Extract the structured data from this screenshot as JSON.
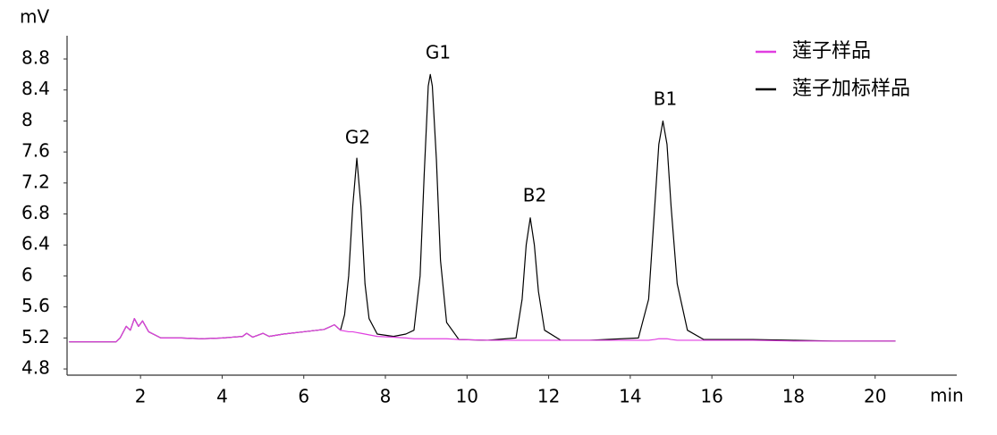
{
  "chart_data": {
    "type": "line",
    "y_label": "mV",
    "x_label": "min",
    "x": [
      0.25,
      1.4,
      1.5,
      1.65,
      1.75,
      1.85,
      1.95,
      2.05,
      2.2,
      2.5,
      3,
      3.5,
      4,
      4.5,
      4.6,
      4.75,
      5.0,
      5.15,
      5.5,
      6,
      6.5,
      6.75,
      6.9,
      7.0,
      7.1,
      7.2,
      7.3,
      7.4,
      7.5,
      7.6,
      7.8,
      8.2,
      8.5,
      8.7,
      8.85,
      8.95,
      9.05,
      9.1,
      9.15,
      9.25,
      9.35,
      9.5,
      9.8,
      10.5,
      11.2,
      11.35,
      11.45,
      11.55,
      11.65,
      11.75,
      11.9,
      12.3,
      13,
      14.2,
      14.45,
      14.6,
      14.7,
      14.8,
      14.9,
      15.0,
      15.15,
      15.4,
      15.8,
      17,
      18,
      19,
      20.5
    ],
    "series": [
      {
        "name": "莲子加标样品",
        "color": "#000000",
        "values": [
          5.15,
          5.15,
          5.2,
          5.35,
          5.3,
          5.45,
          5.35,
          5.42,
          5.28,
          5.2,
          5.2,
          5.19,
          5.2,
          5.22,
          5.26,
          5.21,
          5.26,
          5.22,
          5.25,
          5.28,
          5.31,
          5.37,
          5.3,
          5.5,
          6.0,
          6.9,
          7.52,
          6.9,
          5.9,
          5.45,
          5.25,
          5.22,
          5.25,
          5.3,
          6.0,
          7.3,
          8.45,
          8.6,
          8.45,
          7.5,
          6.2,
          5.4,
          5.18,
          5.17,
          5.2,
          5.7,
          6.4,
          6.75,
          6.4,
          5.8,
          5.3,
          5.17,
          5.17,
          5.2,
          5.7,
          6.9,
          7.7,
          8.0,
          7.7,
          6.9,
          5.9,
          5.3,
          5.18,
          5.18,
          5.17,
          5.16,
          5.16
        ]
      },
      {
        "name": "莲子样品",
        "color": "#e03ee0",
        "values": [
          5.15,
          5.15,
          5.2,
          5.35,
          5.3,
          5.45,
          5.35,
          5.42,
          5.28,
          5.2,
          5.2,
          5.19,
          5.2,
          5.22,
          5.26,
          5.21,
          5.26,
          5.22,
          5.25,
          5.28,
          5.31,
          5.37,
          5.3,
          5.29,
          5.28,
          5.28,
          5.27,
          5.26,
          5.25,
          5.24,
          5.22,
          5.21,
          5.2,
          5.19,
          5.19,
          5.19,
          5.19,
          5.19,
          5.19,
          5.19,
          5.19,
          5.19,
          5.18,
          5.17,
          5.17,
          5.17,
          5.17,
          5.17,
          5.17,
          5.17,
          5.17,
          5.17,
          5.17,
          5.17,
          5.17,
          5.18,
          5.19,
          5.19,
          5.19,
          5.18,
          5.17,
          5.17,
          5.17,
          5.17,
          5.16,
          5.16,
          5.16
        ]
      }
    ],
    "annotations": [
      "G2",
      "G1",
      "B2",
      "B1"
    ],
    "xlim": [
      0.2,
      22
    ],
    "xticks": [
      2,
      4,
      6,
      8,
      10,
      12,
      14,
      16,
      18,
      20
    ],
    "ylim": [
      4.72,
      9.1
    ],
    "yticks": [
      4.8,
      5.2,
      5.6,
      6,
      6.4,
      6.8,
      7.2,
      7.6,
      8,
      8.4,
      8.8
    ],
    "legend": "upper right",
    "grid": false
  }
}
